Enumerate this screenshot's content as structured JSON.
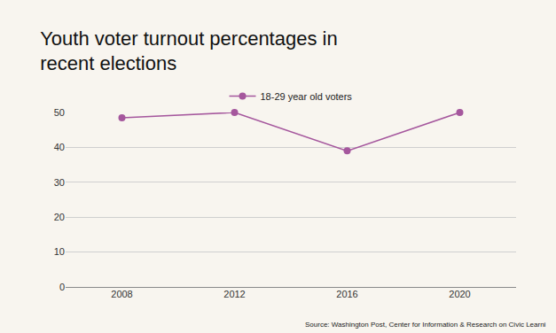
{
  "chart_data": {
    "type": "line",
    "title": "Youth voter turnout percentages in recent elections",
    "categories": [
      "2008",
      "2012",
      "2016",
      "2020"
    ],
    "series": [
      {
        "name": "18-29 year old voters",
        "color": "#a5579d",
        "values": [
          48.5,
          50,
          39,
          50
        ]
      }
    ],
    "ylim": [
      0,
      50
    ],
    "yticks": [
      0,
      10,
      20,
      30,
      40,
      50
    ],
    "grid": true,
    "marker": "circle",
    "line_style": "solid",
    "legend": "top",
    "annotations": [
      "Source: Washington Post, Center for Information & Research on Civic Learni"
    ]
  }
}
